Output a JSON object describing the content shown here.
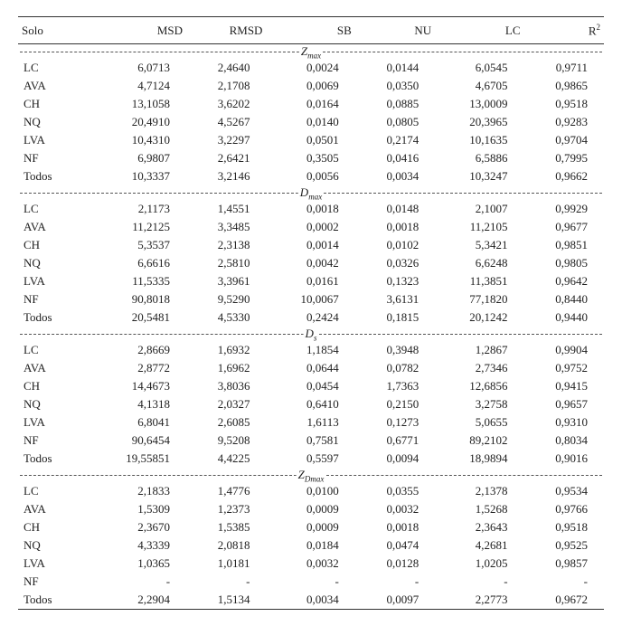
{
  "columns": [
    "Solo",
    "MSD",
    "RMSD",
    "SB",
    "NU",
    "LC",
    "R2"
  ],
  "col_widths_pct": [
    12,
    14,
    14,
    14,
    14,
    14,
    14
  ],
  "text_color": "#222222",
  "background_color": "#ffffff",
  "border_color": "#333333",
  "dash_color": "#555555",
  "font_family": "Times New Roman",
  "font_size_pt": 10,
  "r2_label_html": "R<span class=\"sup\">2</span>",
  "sections": [
    {
      "label": "Zmax",
      "label_html": "Z<span class=\"sub\">max</span>",
      "rows": [
        [
          "LC",
          "6,0713",
          "2,4640",
          "0,0024",
          "0,0144",
          "6,0545",
          "0,9711"
        ],
        [
          "AVA",
          "4,7124",
          "2,1708",
          "0,0069",
          "0,0350",
          "4,6705",
          "0,9865"
        ],
        [
          "CH",
          "13,1058",
          "3,6202",
          "0,0164",
          "0,0885",
          "13,0009",
          "0,9518"
        ],
        [
          "NQ",
          "20,4910",
          "4,5267",
          "0,0140",
          "0,0805",
          "20,3965",
          "0,9283"
        ],
        [
          "LVA",
          "10,4310",
          "3,2297",
          "0,0501",
          "0,2174",
          "10,1635",
          "0,9704"
        ],
        [
          "NF",
          "6,9807",
          "2,6421",
          "0,3505",
          "0,0416",
          "6,5886",
          "0,7995"
        ],
        [
          "Todos",
          "10,3337",
          "3,2146",
          "0,0056",
          "0,0034",
          "10,3247",
          "0,9662"
        ]
      ]
    },
    {
      "label": "Dmax",
      "label_html": "D<span class=\"sub\">max</span>",
      "rows": [
        [
          "LC",
          "2,1173",
          "1,4551",
          "0,0018",
          "0,0148",
          "2,1007",
          "0,9929"
        ],
        [
          "AVA",
          "11,2125",
          "3,3485",
          "0,0002",
          "0,0018",
          "11,2105",
          "0,9677"
        ],
        [
          "CH",
          "5,3537",
          "2,3138",
          "0,0014",
          "0,0102",
          "5,3421",
          "0,9851"
        ],
        [
          "NQ",
          "6,6616",
          "2,5810",
          "0,0042",
          "0,0326",
          "6,6248",
          "0,9805"
        ],
        [
          "LVA",
          "11,5335",
          "3,3961",
          "0,0161",
          "0,1323",
          "11,3851",
          "0,9642"
        ],
        [
          "NF",
          "90,8018",
          "9,5290",
          "10,0067",
          "3,6131",
          "77,1820",
          "0,8440"
        ],
        [
          "Todos",
          "20,5481",
          "4,5330",
          "0,2424",
          "0,1815",
          "20,1242",
          "0,9440"
        ]
      ]
    },
    {
      "label": "Ds",
      "label_html": "D<span class=\"sub\">s</span>",
      "rows": [
        [
          "LC",
          "2,8669",
          "1,6932",
          "1,1854",
          "0,3948",
          "1,2867",
          "0,9904"
        ],
        [
          "AVA",
          "2,8772",
          "1,6962",
          "0,0644",
          "0,0782",
          "2,7346",
          "0,9752"
        ],
        [
          "CH",
          "14,4673",
          "3,8036",
          "0,0454",
          "1,7363",
          "12,6856",
          "0,9415"
        ],
        [
          "NQ",
          "4,1318",
          "2,0327",
          "0,6410",
          "0,2150",
          "3,2758",
          "0,9657"
        ],
        [
          "LVA",
          "6,8041",
          "2,6085",
          "1,6113",
          "0,1273",
          "5,0655",
          "0,9310"
        ],
        [
          "NF",
          "90,6454",
          "9,5208",
          "0,7581",
          "0,6771",
          "89,2102",
          "0,8034"
        ],
        [
          "Todos",
          "19,55851",
          "4,4225",
          "0,5597",
          "0,0094",
          "18,9894",
          "0,9016"
        ]
      ]
    },
    {
      "label": "ZDmax",
      "label_html": "Z<span class=\"sub\">Dmax</span>",
      "rows": [
        [
          "LC",
          "2,1833",
          "1,4776",
          "0,0100",
          "0,0355",
          "2,1378",
          "0,9534"
        ],
        [
          "AVA",
          "1,5309",
          "1,2373",
          "0,0009",
          "0,0032",
          "1,5268",
          "0,9766"
        ],
        [
          "CH",
          "2,3670",
          "1,5385",
          "0,0009",
          "0,0018",
          "2,3643",
          "0,9518"
        ],
        [
          "NQ",
          "4,3339",
          "2,0818",
          "0,0184",
          "0,0474",
          "4,2681",
          "0,9525"
        ],
        [
          "LVA",
          "1,0365",
          "1,0181",
          "0,0032",
          "0,0128",
          "1,0205",
          "0,9857"
        ],
        [
          "NF",
          "-",
          "-",
          "-",
          "-",
          "-",
          "-"
        ],
        [
          "Todos",
          "2,2904",
          "1,5134",
          "0,0034",
          "0,0097",
          "2,2773",
          "0,9672"
        ]
      ]
    }
  ]
}
